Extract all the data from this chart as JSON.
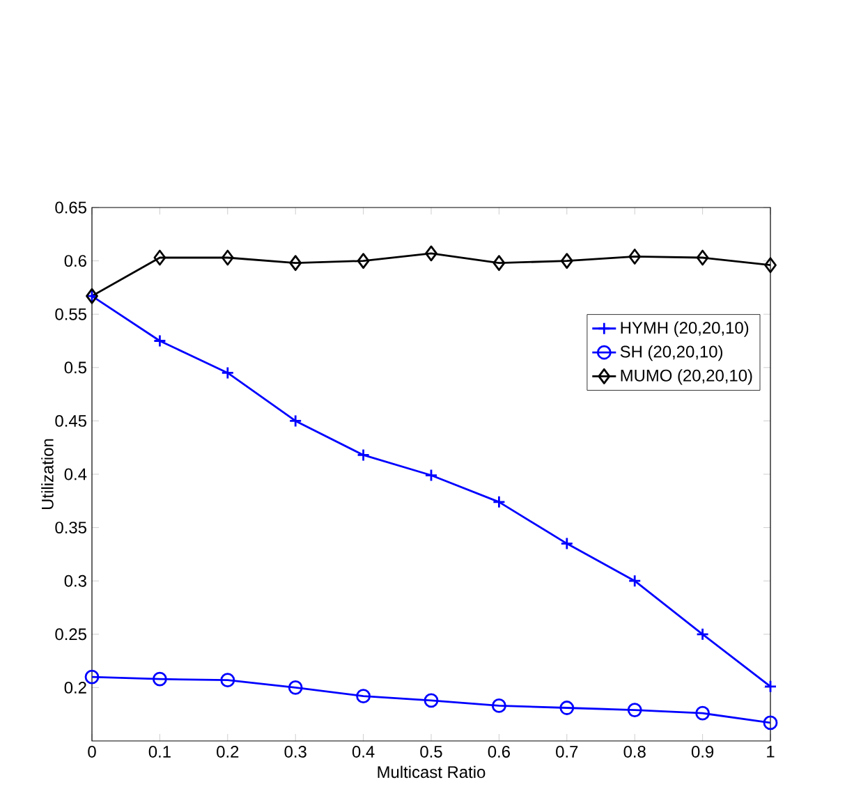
{
  "chart_data": {
    "type": "line",
    "xlabel": "Multicast Ratio",
    "ylabel": "Utilization",
    "x": [
      0,
      0.1,
      0.2,
      0.3,
      0.4,
      0.5,
      0.6,
      0.7,
      0.8,
      0.9,
      1
    ],
    "series": [
      {
        "name": "HYMH (20,20,10)",
        "color": "#0000ff",
        "marker": "cross",
        "values": [
          0.567,
          0.525,
          0.495,
          0.45,
          0.418,
          0.399,
          0.374,
          0.335,
          0.3,
          0.25,
          0.201
        ]
      },
      {
        "name": "SH (20,20,10)",
        "color": "#0000ff",
        "marker": "circle",
        "values": [
          0.21,
          0.208,
          0.207,
          0.2,
          0.192,
          0.188,
          0.183,
          0.181,
          0.179,
          0.176,
          0.167
        ]
      },
      {
        "name": "MUMO (20,20,10)",
        "color": "#000000",
        "marker": "diamond",
        "values": [
          0.567,
          0.603,
          0.603,
          0.598,
          0.6,
          0.607,
          0.598,
          0.6,
          0.604,
          0.603,
          0.596
        ]
      }
    ],
    "xlim": [
      0,
      1
    ],
    "ylim": [
      0.15,
      0.65
    ],
    "xticks": [
      0,
      0.1,
      0.2,
      0.3,
      0.4,
      0.5,
      0.6,
      0.7,
      0.8,
      0.9,
      1
    ],
    "yticks": [
      0.2,
      0.25,
      0.3,
      0.35,
      0.4,
      0.45,
      0.5,
      0.55,
      0.6,
      0.65
    ],
    "legend": "top right",
    "grid": false,
    "line_style": "solid"
  }
}
